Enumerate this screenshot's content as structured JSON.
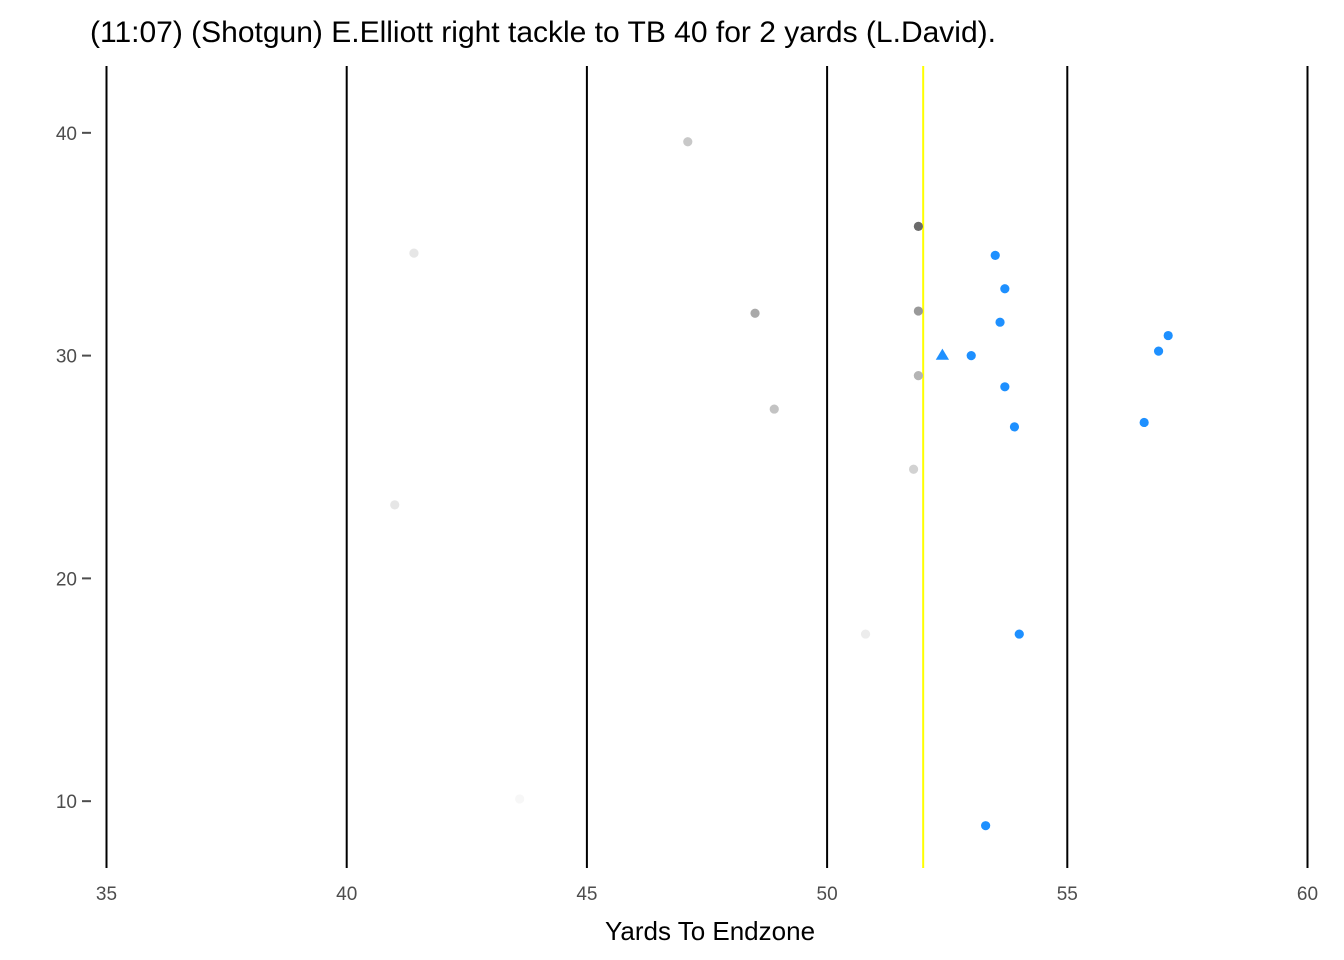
{
  "chart_data": {
    "type": "scatter",
    "title": "(11:07) (Shotgun) E.Elliott right tackle to TB 40 for 2 yards (L.David).",
    "xlabel": "Yards To Endzone",
    "ylabel": "",
    "xlim": [
      35,
      60
    ],
    "ylim": [
      7,
      43
    ],
    "x_ticks": [
      "35",
      "40",
      "45",
      "50",
      "55",
      "60"
    ],
    "y_ticks": [
      "10",
      "20",
      "30",
      "40"
    ],
    "x_tick_values": [
      35,
      40,
      45,
      50,
      55,
      60
    ],
    "y_tick_values": [
      10,
      20,
      30,
      40
    ],
    "grid": "vertical lines at each x tick",
    "line_of_scrimmage": 52,
    "line_color": "#ffff00",
    "grid_color": "#000000",
    "series": [
      {
        "color": "#1e90ff",
        "points": [
          {
            "x": 53.5,
            "y": 34.5
          },
          {
            "x": 53.7,
            "y": 33.0
          },
          {
            "x": 53.6,
            "y": 31.5
          },
          {
            "x": 53.0,
            "y": 30.0
          },
          {
            "x": 53.7,
            "y": 28.6
          },
          {
            "x": 53.9,
            "y": 26.8
          },
          {
            "x": 56.6,
            "y": 27.0
          },
          {
            "x": 56.9,
            "y": 30.2
          },
          {
            "x": 57.1,
            "y": 30.9
          },
          {
            "x": 54.0,
            "y": 17.5
          },
          {
            "x": 53.3,
            "y": 8.9
          }
        ]
      },
      {
        "color": "#1e90ff",
        "marker": "triangle",
        "points": [
          {
            "x": 52.4,
            "y": 30.0
          }
        ]
      },
      {
        "color": "#bebebe",
        "points": [
          {
            "x": 47.1,
            "y": 39.6,
            "color": "#c8c8c8"
          },
          {
            "x": 51.9,
            "y": 35.8,
            "color": "#6b6b6b"
          },
          {
            "x": 41.4,
            "y": 34.6,
            "color": "#e6e6e6"
          },
          {
            "x": 48.5,
            "y": 31.9,
            "color": "#a9a9a9"
          },
          {
            "x": 51.9,
            "y": 32.0,
            "color": "#999999"
          },
          {
            "x": 51.9,
            "y": 29.1,
            "color": "#b4b4b4"
          },
          {
            "x": 48.9,
            "y": 27.6,
            "color": "#c3c3c3"
          },
          {
            "x": 51.8,
            "y": 24.9,
            "color": "#d2d2d2"
          },
          {
            "x": 41.0,
            "y": 23.3,
            "color": "#e6e6e6"
          },
          {
            "x": 50.8,
            "y": 17.5,
            "color": "#ececec"
          },
          {
            "x": 43.6,
            "y": 10.1,
            "color": "#f7f7f7"
          }
        ]
      }
    ]
  }
}
